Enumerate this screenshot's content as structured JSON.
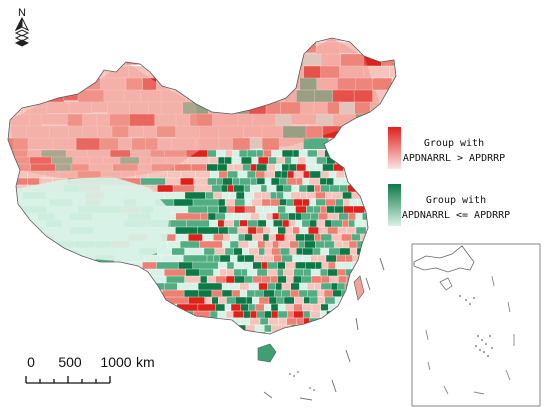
{
  "north_arrow": {
    "letter": "N"
  },
  "legend": {
    "items": [
      {
        "label_line1": "Group with",
        "label_line2": "APDNARRL > APDRRP",
        "gradient": [
          "#e0201b",
          "#fbe4e1"
        ]
      },
      {
        "label_line1": "Group with",
        "label_line2": "APDNARRL <= APDRRP",
        "gradient": [
          "#0c7a46",
          "#d8f2e7"
        ]
      }
    ]
  },
  "scale_bar": {
    "ticks": [
      "0",
      "500",
      "1000"
    ],
    "unit": "km"
  },
  "colors": {
    "red_strong": "#e0201b",
    "red_mid": "#ee7f73",
    "red_light": "#f7c4bd",
    "green_strong": "#0c7a46",
    "green_mid": "#52ae82",
    "green_light": "#d8f2e7",
    "boundary": "#5a5a5a"
  }
}
